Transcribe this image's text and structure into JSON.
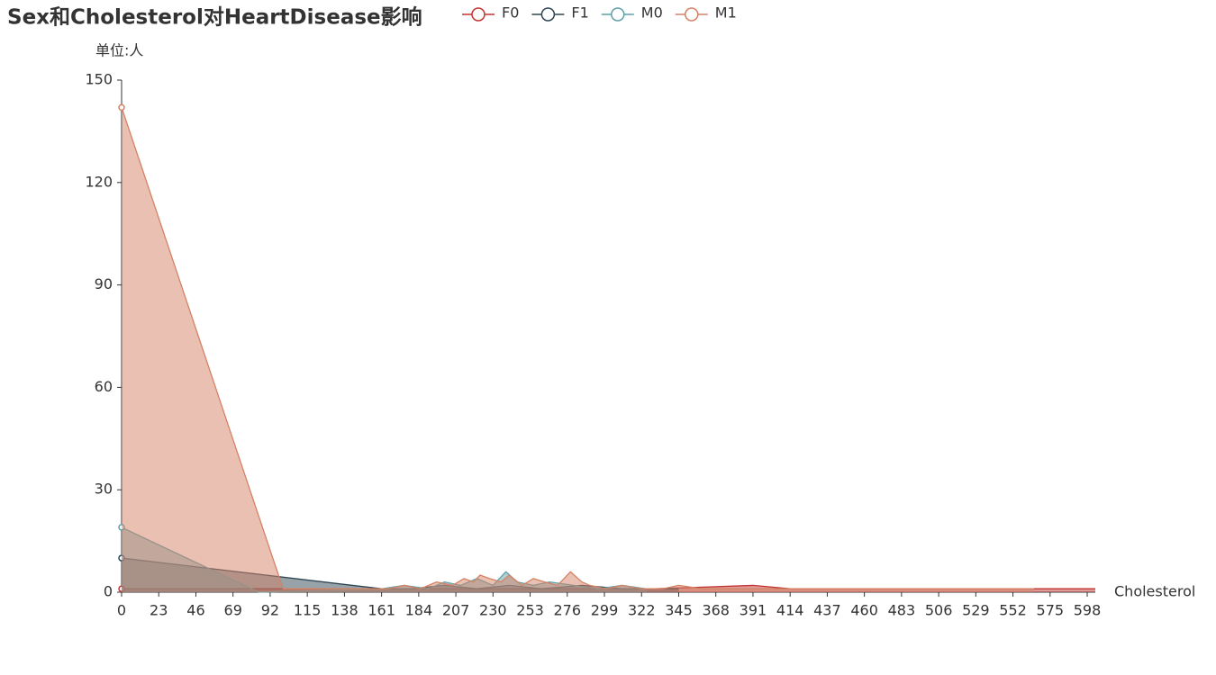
{
  "chart_data": {
    "type": "area",
    "title": "Sex和Cholesterol对HeartDisease影响",
    "x_label": "Cholesterol",
    "y_label": "单位:人",
    "xlim": [
      0,
      603
    ],
    "xticks": [
      0,
      23,
      46,
      69,
      92,
      115,
      138,
      161,
      184,
      207,
      230,
      253,
      276,
      299,
      322,
      345,
      368,
      391,
      414,
      437,
      460,
      483,
      506,
      529,
      552,
      575,
      598
    ],
    "ylim": [
      0,
      150
    ],
    "yticks": [
      0,
      30,
      60,
      90,
      120,
      150
    ],
    "series": [
      {
        "name": "F0",
        "color": "#c23531",
        "x": [
          0,
          300,
          330,
          391,
          414,
          603
        ],
        "values": [
          1,
          1,
          1,
          2,
          1,
          1
        ]
      },
      {
        "name": "F1",
        "color": "#2f4554",
        "x": [
          0,
          161,
          180,
          200,
          220,
          240,
          260,
          285,
          310,
          330,
          345
        ],
        "values": [
          10,
          1,
          1,
          2,
          1,
          2,
          1,
          2,
          1,
          1,
          1
        ]
      },
      {
        "name": "M0",
        "color": "#61a0a8",
        "x": [
          0,
          85,
          161,
          175,
          190,
          200,
          210,
          220,
          230,
          238,
          245,
          255,
          265,
          280,
          295,
          310,
          325
        ],
        "values": [
          19,
          0,
          1,
          2,
          1,
          3,
          2,
          4,
          2,
          6,
          3,
          2,
          3,
          2,
          1,
          2,
          1
        ]
      },
      {
        "name": "M1",
        "color": "#d48265",
        "x": [
          0,
          100,
          165,
          175,
          185,
          195,
          205,
          212,
          218,
          222,
          228,
          235,
          240,
          248,
          255,
          262,
          270,
          278,
          285,
          290,
          300,
          310,
          322,
          335,
          345,
          360,
          529,
          565
        ],
        "values": [
          142,
          1,
          1,
          2,
          1,
          3,
          2,
          4,
          3,
          5,
          4,
          3,
          5,
          2,
          4,
          3,
          2,
          6,
          3,
          2,
          1,
          2,
          1,
          1,
          2,
          1,
          1,
          1
        ]
      }
    ]
  }
}
